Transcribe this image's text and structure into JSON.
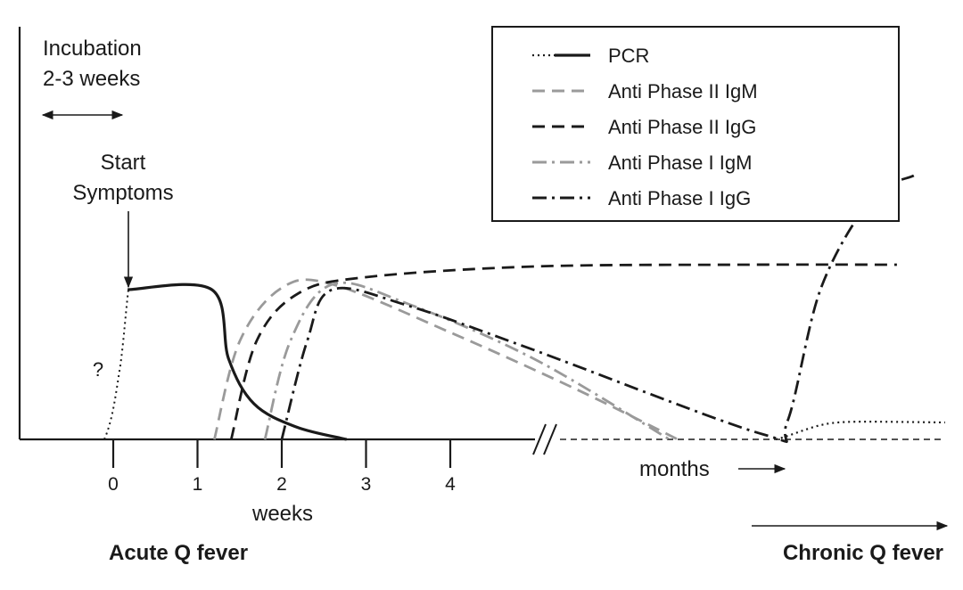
{
  "chart_data": {
    "type": "line",
    "xlabel": "weeks",
    "x_ticks": [
      "0",
      "1",
      "2",
      "3",
      "4"
    ],
    "axis_break": true,
    "months_label": "months",
    "stage_labels": {
      "acute": "Acute Q fever",
      "chronic": "Chronic Q fever"
    },
    "annotations": {
      "incubation_line1": "Incubation",
      "incubation_line2": "2-3 weeks",
      "start_line1": "Start",
      "start_line2": "Symptoms",
      "unknown": "?"
    },
    "legend_placement": "top-right",
    "series": [
      {
        "name": "PCR",
        "color": "#1a1a1a",
        "style": "solid",
        "points": [
          [
            0.0,
            0.84
          ],
          [
            1.0,
            0.84
          ],
          [
            1.2,
            0.45
          ],
          [
            1.5,
            0.2
          ],
          [
            2.0,
            0.07
          ],
          [
            2.6,
            0.0
          ]
        ]
      },
      {
        "name": "Anti Phase II IgM",
        "color": "#9a9a9a",
        "style": "dashed",
        "points": [
          [
            1.2,
            0.0
          ],
          [
            1.5,
            0.55
          ],
          [
            2.0,
            0.85
          ],
          [
            2.6,
            0.87
          ],
          [
            4.0,
            0.6
          ],
          [
            5.5,
            0.28
          ],
          [
            6.7,
            0.0
          ]
        ]
      },
      {
        "name": "Anti Phase II IgG",
        "color": "#1a1a1a",
        "style": "dashed",
        "points": [
          [
            1.4,
            0.0
          ],
          [
            1.7,
            0.55
          ],
          [
            2.2,
            0.82
          ],
          [
            3.0,
            0.91
          ],
          [
            5.0,
            0.97
          ],
          [
            7.5,
            0.98
          ],
          [
            9.3,
            0.98
          ]
        ]
      },
      {
        "name": "Anti Phase I IgM",
        "color": "#9a9a9a",
        "style": "dashdot",
        "points": [
          [
            1.8,
            0.0
          ],
          [
            2.1,
            0.55
          ],
          [
            2.6,
            0.87
          ],
          [
            3.5,
            0.76
          ],
          [
            5.0,
            0.45
          ],
          [
            6.6,
            0.0
          ]
        ]
      },
      {
        "name": "Anti Phase I IgG",
        "color": "#1a1a1a",
        "style": "dashdot",
        "points": [
          [
            2.0,
            0.0
          ],
          [
            2.3,
            0.55
          ],
          [
            2.6,
            0.84
          ],
          [
            3.5,
            0.75
          ],
          [
            5.0,
            0.5
          ],
          [
            7.7,
            0.03
          ],
          [
            8.0,
            0.1
          ],
          [
            8.4,
            0.85
          ],
          [
            9.0,
            1.35
          ],
          [
            9.5,
            1.48
          ]
        ]
      }
    ]
  }
}
